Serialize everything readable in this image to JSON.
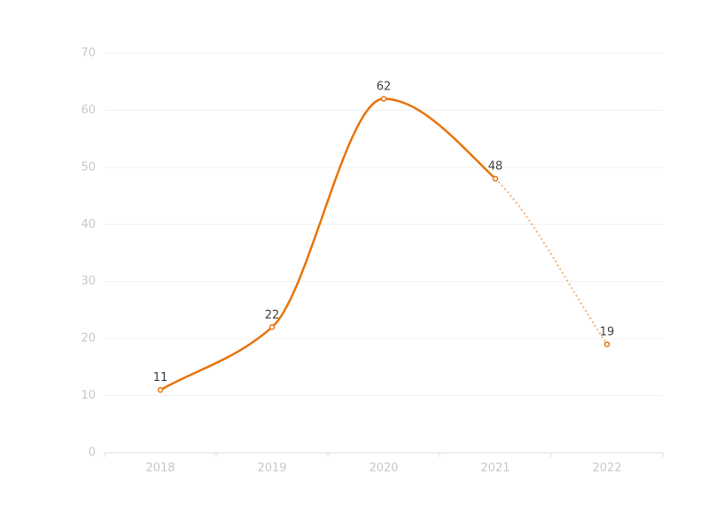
{
  "chart_data": {
    "type": "line",
    "title": "",
    "xlabel": "",
    "ylabel": "",
    "categories": [
      "2018",
      "2019",
      "2020",
      "2021",
      "2022"
    ],
    "values": [
      11,
      22,
      62,
      48,
      19
    ],
    "ylim": [
      0,
      70
    ],
    "yticks": [
      0,
      10,
      20,
      30,
      40,
      50,
      60,
      70
    ],
    "grid": true,
    "smooth": true,
    "forecast_from_index": 3,
    "colors": {
      "line": "#e8740c",
      "forecast": "#f3b47c",
      "marker_fill": "#ffffff"
    }
  }
}
